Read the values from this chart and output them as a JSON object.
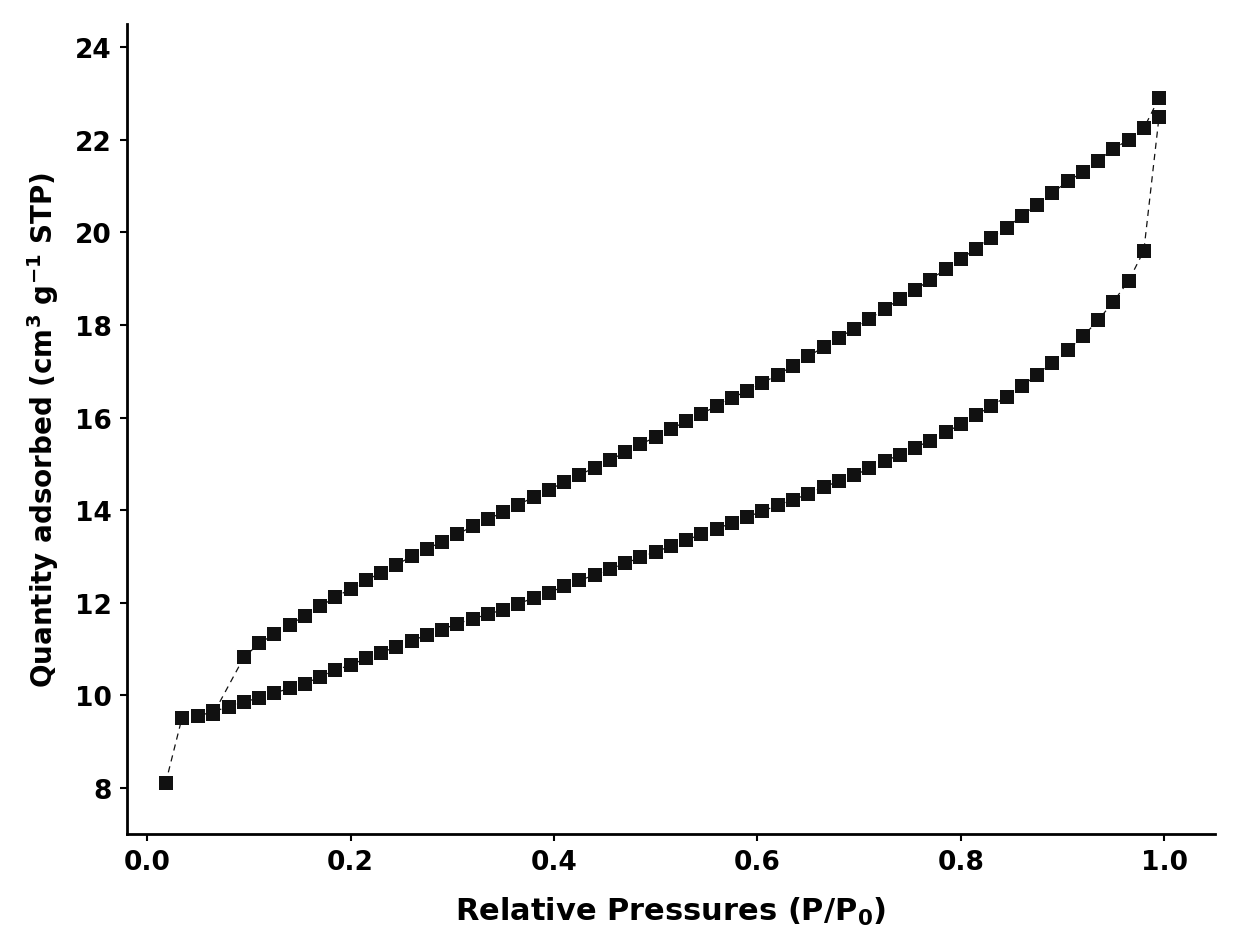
{
  "xlabel": "Relative Pressures (P/P$_0$)",
  "ylabel": "Quantity adsorbed (cm$^3$ g$^{-1}$ STP)",
  "xlim": [
    -0.02,
    1.05
  ],
  "ylim": [
    7.0,
    24.5
  ],
  "yticks": [
    8,
    10,
    12,
    14,
    16,
    18,
    20,
    22,
    24
  ],
  "xticks": [
    0.0,
    0.2,
    0.4,
    0.6,
    0.8,
    1.0
  ],
  "background_color": "#ffffff",
  "marker_color": "#111111",
  "xlabel_fontsize": 22,
  "ylabel_fontsize": 20,
  "tick_fontsize": 19,
  "marker_size": 10,
  "linewidth": 0.9,
  "adsorption_x": [
    0.018,
    0.034,
    0.05,
    0.065,
    0.08,
    0.095,
    0.11,
    0.125,
    0.14,
    0.155,
    0.17,
    0.185,
    0.2,
    0.215,
    0.23,
    0.245,
    0.26,
    0.275,
    0.29,
    0.305,
    0.32,
    0.335,
    0.35,
    0.365,
    0.38,
    0.395,
    0.41,
    0.425,
    0.44,
    0.455,
    0.47,
    0.485,
    0.5,
    0.515,
    0.53,
    0.545,
    0.56,
    0.575,
    0.59,
    0.605,
    0.62,
    0.635,
    0.65,
    0.665,
    0.68,
    0.695,
    0.71,
    0.725,
    0.74,
    0.755,
    0.77,
    0.785,
    0.8,
    0.815,
    0.83,
    0.845,
    0.86,
    0.875,
    0.89,
    0.905,
    0.92,
    0.935,
    0.95,
    0.965,
    0.98,
    0.995
  ],
  "adsorption_y": [
    8.1,
    9.5,
    9.55,
    9.65,
    9.75,
    9.85,
    9.95,
    10.05,
    10.15,
    10.25,
    10.4,
    10.55,
    10.65,
    10.8,
    10.92,
    11.05,
    11.18,
    11.3,
    11.42,
    11.55,
    11.65,
    11.75,
    11.85,
    11.98,
    12.1,
    12.22,
    12.35,
    12.48,
    12.6,
    12.72,
    12.85,
    12.98,
    13.1,
    13.22,
    13.35,
    13.48,
    13.6,
    13.72,
    13.85,
    13.98,
    14.1,
    14.22,
    14.35,
    14.5,
    14.62,
    14.75,
    14.9,
    15.05,
    15.2,
    15.35,
    15.5,
    15.68,
    15.85,
    16.05,
    16.25,
    16.45,
    16.68,
    16.92,
    17.18,
    17.45,
    17.75,
    18.1,
    18.5,
    18.95,
    19.6,
    22.5
  ],
  "desorption_x": [
    0.995,
    0.98,
    0.965,
    0.95,
    0.935,
    0.92,
    0.905,
    0.89,
    0.875,
    0.86,
    0.845,
    0.83,
    0.815,
    0.8,
    0.785,
    0.77,
    0.755,
    0.74,
    0.725,
    0.71,
    0.695,
    0.68,
    0.665,
    0.65,
    0.635,
    0.62,
    0.605,
    0.59,
    0.575,
    0.56,
    0.545,
    0.53,
    0.515,
    0.5,
    0.485,
    0.47,
    0.455,
    0.44,
    0.425,
    0.41,
    0.395,
    0.38,
    0.365,
    0.35,
    0.335,
    0.32,
    0.305,
    0.29,
    0.275,
    0.26,
    0.245,
    0.23,
    0.215,
    0.2,
    0.185,
    0.17,
    0.155,
    0.14,
    0.125,
    0.11,
    0.095,
    0.065
  ],
  "desorption_y": [
    22.9,
    22.25,
    22.0,
    21.8,
    21.55,
    21.3,
    21.1,
    20.85,
    20.6,
    20.35,
    20.1,
    19.88,
    19.65,
    19.42,
    19.2,
    18.98,
    18.75,
    18.55,
    18.35,
    18.12,
    17.92,
    17.72,
    17.52,
    17.32,
    17.12,
    16.92,
    16.75,
    16.58,
    16.42,
    16.25,
    16.08,
    15.92,
    15.75,
    15.58,
    15.42,
    15.25,
    15.08,
    14.92,
    14.76,
    14.6,
    14.44,
    14.28,
    14.12,
    13.96,
    13.8,
    13.65,
    13.48,
    13.32,
    13.16,
    13.0,
    12.82,
    12.65,
    12.48,
    12.3,
    12.12,
    11.92,
    11.72,
    11.52,
    11.32,
    11.12,
    10.82,
    9.6
  ]
}
